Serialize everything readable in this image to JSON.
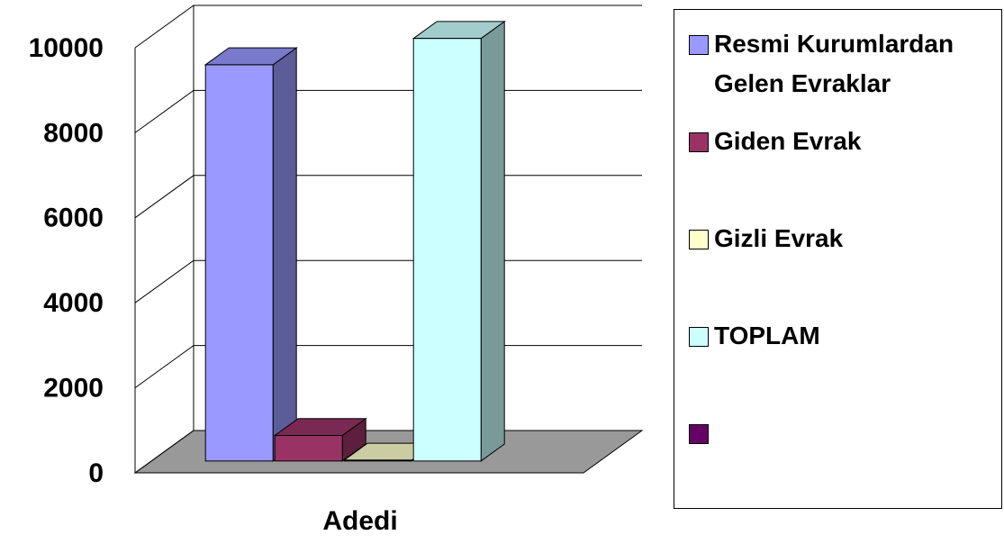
{
  "chart_data": {
    "type": "bar3d",
    "categories": [
      "Adedi"
    ],
    "series": [
      {
        "name": "Resmi Kurumlardan Gelen Evraklar",
        "color": "#9999ff",
        "values": [
          9320
        ]
      },
      {
        "name": "Giden Evrak",
        "color": "#993366",
        "values": [
          600
        ]
      },
      {
        "name": "Gizli Evrak",
        "color": "#ffffcc",
        "values": [
          20
        ]
      },
      {
        "name": "TOPLAM",
        "color": "#ccffff",
        "values": [
          9940
        ]
      },
      {
        "name": null,
        "color": "#660066",
        "values": [
          null
        ]
      }
    ],
    "ylim": [
      0,
      10000
    ],
    "yticks": [
      0,
      2000,
      4000,
      6000,
      8000,
      10000
    ],
    "grid": true,
    "legend": "right"
  }
}
